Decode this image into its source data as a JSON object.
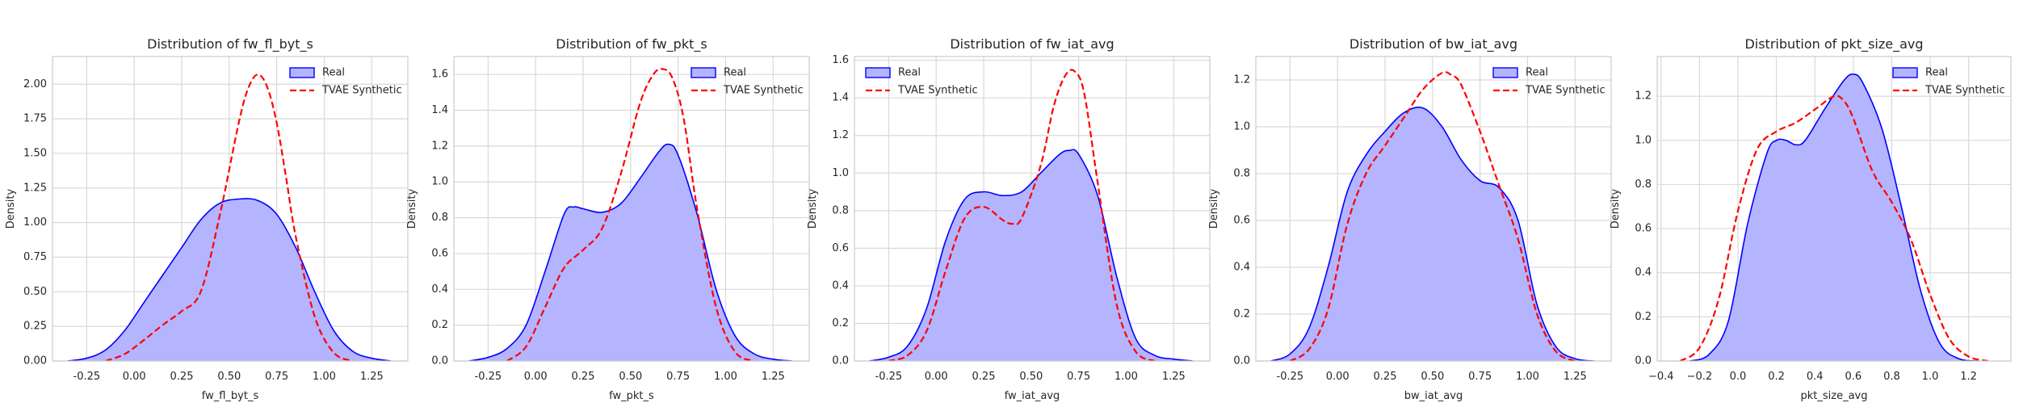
{
  "figure": {
    "legend_real": "Real",
    "legend_synth": "TVAE Synthetic",
    "ylabel": "Density",
    "colors": {
      "real_line": "#0000ff",
      "real_fill": "#b3b3ff",
      "synthetic_line": "#ff0000",
      "grid": "#d9d9d9",
      "axes_bg": "#ffffff"
    }
  },
  "chart_data": [
    {
      "type": "area",
      "title": "Distribution of fw_fl_byt_s",
      "xlabel": "fw_fl_byt_s",
      "ylabel": "Density",
      "xlim": [
        -0.43,
        1.44
      ],
      "ylim": [
        0,
        2.2
      ],
      "xticks": [
        "-0.25",
        "0.00",
        "0.25",
        "0.50",
        "0.75",
        "1.00",
        "1.25"
      ],
      "yticks": [
        "0.00",
        "0.25",
        "0.50",
        "0.75",
        "1.00",
        "1.25",
        "1.50",
        "1.75",
        "2.00"
      ],
      "legend_position": "top-right",
      "grid": true,
      "series": [
        {
          "name": "Real",
          "style": "solid-filled",
          "x": [
            -0.35,
            -0.25,
            -0.15,
            -0.05,
            0.05,
            0.15,
            0.25,
            0.35,
            0.45,
            0.55,
            0.65,
            0.75,
            0.85,
            0.95,
            1.05,
            1.15,
            1.25,
            1.35
          ],
          "y": [
            0.0,
            0.02,
            0.08,
            0.22,
            0.42,
            0.62,
            0.82,
            1.02,
            1.14,
            1.17,
            1.16,
            1.06,
            0.82,
            0.5,
            0.22,
            0.07,
            0.02,
            0.0
          ]
        },
        {
          "name": "TVAE Synthetic",
          "style": "dashed",
          "x": [
            -0.15,
            -0.05,
            0.05,
            0.15,
            0.25,
            0.35,
            0.45,
            0.55,
            0.6,
            0.65,
            0.7,
            0.75,
            0.8,
            0.85,
            0.95,
            1.05,
            1.15
          ],
          "y": [
            0.0,
            0.05,
            0.15,
            0.26,
            0.36,
            0.5,
            1.05,
            1.72,
            1.97,
            2.07,
            1.98,
            1.72,
            1.32,
            0.9,
            0.32,
            0.06,
            0.0
          ]
        }
      ]
    },
    {
      "type": "area",
      "title": "Distribution of fw_pkt_s",
      "xlabel": "fw_pkt_s",
      "ylabel": "Density",
      "xlim": [
        -0.43,
        1.44
      ],
      "ylim": [
        0,
        1.7
      ],
      "xticks": [
        "-0.25",
        "0.00",
        "0.25",
        "0.50",
        "0.75",
        "1.00",
        "1.25"
      ],
      "yticks": [
        "0.0",
        "0.2",
        "0.4",
        "0.6",
        "0.8",
        "1.0",
        "1.2",
        "1.4",
        "1.6"
      ],
      "legend_position": "top-right",
      "grid": true,
      "series": [
        {
          "name": "Real",
          "style": "solid-filled",
          "x": [
            -0.35,
            -0.25,
            -0.15,
            -0.05,
            0.05,
            0.15,
            0.2,
            0.25,
            0.35,
            0.45,
            0.55,
            0.65,
            0.7,
            0.75,
            0.85,
            0.95,
            1.05,
            1.15,
            1.25,
            1.35
          ],
          "y": [
            0.0,
            0.02,
            0.07,
            0.2,
            0.5,
            0.82,
            0.86,
            0.85,
            0.83,
            0.88,
            1.02,
            1.17,
            1.21,
            1.15,
            0.82,
            0.4,
            0.14,
            0.04,
            0.01,
            0.0
          ]
        },
        {
          "name": "TVAE Synthetic",
          "style": "dashed",
          "x": [
            -0.15,
            -0.05,
            0.05,
            0.15,
            0.25,
            0.35,
            0.45,
            0.55,
            0.62,
            0.67,
            0.72,
            0.78,
            0.85,
            0.95,
            1.05,
            1.15
          ],
          "y": [
            0.0,
            0.08,
            0.3,
            0.52,
            0.62,
            0.74,
            1.05,
            1.44,
            1.6,
            1.63,
            1.58,
            1.35,
            0.85,
            0.3,
            0.05,
            0.0
          ]
        }
      ]
    },
    {
      "type": "area",
      "title": "Distribution of fw_iat_avg",
      "xlabel": "fw_iat_avg",
      "ylabel": "Density",
      "xlim": [
        -0.43,
        1.44
      ],
      "ylim": [
        0,
        1.62
      ],
      "xticks": [
        "-0.25",
        "0.00",
        "0.25",
        "0.50",
        "0.75",
        "1.00",
        "1.25"
      ],
      "yticks": [
        "0.0",
        "0.2",
        "0.4",
        "0.6",
        "0.8",
        "1.0",
        "1.2",
        "1.4",
        "1.6"
      ],
      "legend_position": "top-left",
      "grid": true,
      "series": [
        {
          "name": "Real",
          "style": "solid-filled",
          "x": [
            -0.35,
            -0.25,
            -0.15,
            -0.05,
            0.05,
            0.15,
            0.25,
            0.35,
            0.45,
            0.55,
            0.65,
            0.7,
            0.75,
            0.85,
            0.95,
            1.05,
            1.15,
            1.25,
            1.35
          ],
          "y": [
            0.0,
            0.02,
            0.08,
            0.28,
            0.64,
            0.86,
            0.9,
            0.88,
            0.9,
            1.0,
            1.1,
            1.12,
            1.1,
            0.88,
            0.45,
            0.12,
            0.03,
            0.01,
            0.0
          ]
        },
        {
          "name": "TVAE Synthetic",
          "style": "dashed",
          "x": [
            -0.25,
            -0.15,
            -0.05,
            0.05,
            0.15,
            0.25,
            0.35,
            0.4,
            0.45,
            0.55,
            0.62,
            0.68,
            0.73,
            0.78,
            0.85,
            0.95,
            1.05,
            1.15
          ],
          "y": [
            0.0,
            0.03,
            0.16,
            0.48,
            0.76,
            0.82,
            0.75,
            0.73,
            0.76,
            1.04,
            1.36,
            1.52,
            1.54,
            1.42,
            0.95,
            0.3,
            0.05,
            0.0
          ]
        }
      ]
    },
    {
      "type": "area",
      "title": "Distribution of bw_iat_avg",
      "xlabel": "bw_iat_avg",
      "ylabel": "Density",
      "xlim": [
        -0.43,
        1.44
      ],
      "ylim": [
        0,
        1.3
      ],
      "xticks": [
        "-0.25",
        "0.00",
        "0.25",
        "0.50",
        "0.75",
        "1.00",
        "1.25"
      ],
      "yticks": [
        "0.0",
        "0.2",
        "0.4",
        "0.6",
        "0.8",
        "1.0",
        "1.2"
      ],
      "legend_position": "top-right",
      "grid": true,
      "series": [
        {
          "name": "Real",
          "style": "solid-filled",
          "x": [
            -0.35,
            -0.25,
            -0.15,
            -0.05,
            0.05,
            0.15,
            0.25,
            0.35,
            0.45,
            0.55,
            0.65,
            0.75,
            0.85,
            0.95,
            1.05,
            1.15,
            1.25,
            1.35
          ],
          "y": [
            0.0,
            0.03,
            0.14,
            0.4,
            0.72,
            0.88,
            0.98,
            1.06,
            1.08,
            1.0,
            0.86,
            0.77,
            0.74,
            0.6,
            0.24,
            0.06,
            0.01,
            0.0
          ]
        },
        {
          "name": "TVAE Synthetic",
          "style": "dashed",
          "x": [
            -0.25,
            -0.15,
            -0.05,
            0.05,
            0.15,
            0.25,
            0.35,
            0.45,
            0.55,
            0.6,
            0.65,
            0.75,
            0.85,
            0.95,
            1.05,
            1.15,
            1.25
          ],
          "y": [
            0.0,
            0.05,
            0.22,
            0.58,
            0.8,
            0.92,
            1.04,
            1.16,
            1.23,
            1.22,
            1.18,
            0.98,
            0.75,
            0.52,
            0.2,
            0.04,
            0.0
          ]
        }
      ]
    },
    {
      "type": "area",
      "title": "Distribution of pkt_size_avg",
      "xlabel": "pkt_size_avg",
      "ylabel": "Density",
      "xlim": [
        -0.42,
        1.42
      ],
      "ylim": [
        0,
        1.38
      ],
      "xticks": [
        "−0.4",
        "−0.2",
        "0.0",
        "0.2",
        "0.4",
        "0.6",
        "0.8",
        "1.0",
        "1.2"
      ],
      "yticks": [
        "0.0",
        "0.2",
        "0.4",
        "0.6",
        "0.8",
        "1.0",
        "1.2"
      ],
      "legend_position": "top-right",
      "grid": true,
      "series": [
        {
          "name": "Real",
          "style": "solid-filled",
          "x": [
            -0.25,
            -0.15,
            -0.05,
            0.05,
            0.15,
            0.2,
            0.25,
            0.3,
            0.35,
            0.45,
            0.55,
            0.6,
            0.65,
            0.75,
            0.85,
            0.95,
            1.05,
            1.15,
            1.25
          ],
          "y": [
            0.0,
            0.03,
            0.18,
            0.62,
            0.94,
            1.0,
            1.0,
            0.98,
            1.0,
            1.14,
            1.27,
            1.3,
            1.26,
            1.05,
            0.7,
            0.32,
            0.08,
            0.01,
            0.0
          ]
        },
        {
          "name": "TVAE Synthetic",
          "style": "dashed",
          "x": [
            -0.3,
            -0.2,
            -0.1,
            0.0,
            0.1,
            0.2,
            0.3,
            0.4,
            0.5,
            0.55,
            0.6,
            0.7,
            0.8,
            0.9,
            1.0,
            1.1,
            1.2,
            1.3
          ],
          "y": [
            0.0,
            0.06,
            0.28,
            0.68,
            0.96,
            1.04,
            1.08,
            1.14,
            1.2,
            1.18,
            1.1,
            0.86,
            0.72,
            0.55,
            0.3,
            0.1,
            0.02,
            0.0
          ]
        }
      ]
    }
  ]
}
